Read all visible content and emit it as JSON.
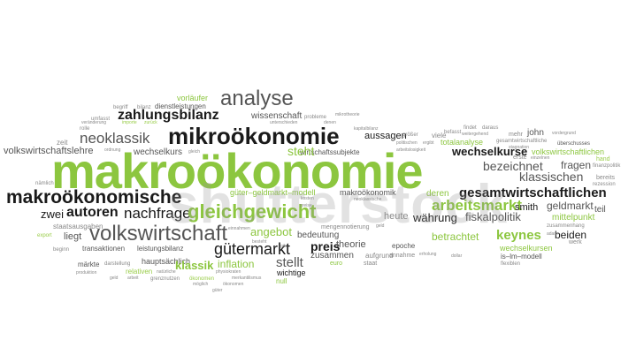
{
  "words": {
    "vorlaeufer": "vorläufer",
    "begriff": "begriff",
    "bilanz": "bilanz",
    "dienstleistungen": "dienstleistungen",
    "analyse": "analyse",
    "umfasst": "umfasst",
    "zahlungsbilanz": "zahlungsbilanz",
    "wissenschaft": "wissenschaft",
    "probleme": "probleme",
    "kapitalbilanz": "kapitalbilanz",
    "findet": "findet",
    "daraus": "daraus",
    "viele": "viele",
    "befasst": "befasst",
    "mehr": "mehr",
    "john": "john",
    "rolle": "rolle",
    "neoklassik": "neoklassik",
    "mikrooekonomie": "mikroökonomie",
    "aussagen": "aussagen",
    "totalanalyse": "totalanalyse",
    "gesamtwirtschaftliche": "gesamtwirtschaftliche",
    "ueberschusses": "überschusses",
    "zeit": "zeit",
    "wechselkurs": "wechselkurs",
    "wirtschaftssubjekte": "wirtschaftssubjekte",
    "wechselkurse": "wechselkurse",
    "volkswirtschaftlichen": "volkswirtschaftlichen",
    "volkswirtschaftslehre": "volkswirtschaftslehre",
    "steht": "steht",
    "erste": "erste",
    "hand": "hand",
    "makrooekonomie": "makroökonomie",
    "bezeichnet": "bezeichnet",
    "fragen": "fragen",
    "klassischen": "klassischen",
    "bereits": "bereits",
    "makrooekonomische": "makroökonomische",
    "gueter_geldmarkt_modell": "güter–geldmarkt–modell",
    "makrooekonomik": "makroökonomik",
    "deren": "deren",
    "gesamtwirtschaftlichen": "gesamtwirtschaftlichen",
    "arbeitsmarkt": "arbeitsmarkt",
    "smith": "smith",
    "geldmarkt": "geldmarkt",
    "zwei": "zwei",
    "autoren": "autoren",
    "nachfrage": "nachfrage",
    "gleichgewicht": "gleichgewicht",
    "heute": "heute",
    "waehrung": "währung",
    "fiskalpolitik": "fiskalpolitik",
    "teil": "teil",
    "mittelpunkt": "mittelpunkt",
    "staatsausgaben": "staatsausgaben",
    "liegt": "liegt",
    "volkswirtschaft": "volkswirtschaft",
    "angebot": "angebot",
    "bedeutung": "bedeutung",
    "betrachtet": "betrachtet",
    "keynes": "keynes",
    "beiden": "beiden",
    "export": "export",
    "gueter": "gütermarkt",
    "preis": "preis",
    "theorie": "theorie",
    "zusammen": "zusammen",
    "aufgrund": "aufgrund",
    "epoche": "epoche",
    "wechselkursen": "wechselkursen",
    "islmmodell": "is–lm–modell",
    "werk": "werk",
    "transaktionen": "transaktionen",
    "leistungsbilanz": "leistungsbilanz",
    "stellt": "stellt",
    "inflation": "inflation",
    "annahme": "annahme",
    "euro": "euro",
    "staat": "staat",
    "flexiblen": "flexiblen",
    "maerkte": "märkte",
    "hauptsaechlich": "hauptsächlich",
    "klassik": "klassik",
    "wichtige": "wichtige",
    "produktion": "produktion",
    "relativen": "relativen",
    "null": "null",
    "grenznutzen": "grenznutzen",
    "oekonomen": "ökonomen",
    "gueter_small": "güter",
    "mengennotierung": "mengennotierung",
    "neoklassische": "neoklassische",
    "stagnation": "stagnation",
    "zusammenhang": "zusammenhang",
    "finanzpolitik": "finanzpolitik",
    "rezession": "rezession",
    "einzelnen": "einzelnen",
    "naemlich": "nämlich",
    "gleich": "gleich",
    "kosten": "kosten",
    "preise": "preise",
    "ordnung": "ordnung",
    "darstellung": "darstellung",
    "natuerliche": "natürliche",
    "physiokraten": "physiokraten",
    "moeglich": "möglich",
    "merkantilismus": "merkantilismus",
    "geld": "geld",
    "arbeit": "arbeit",
    "beginn": "beginn",
    "gibt": "gibt",
    "besteht": "besteht",
    "dollar": "dollar",
    "erholung": "erholung",
    "politischen": "politischen",
    "maerkten": "märkten",
    "ergibt": "ergibt",
    "vordergrund": "vordergrund",
    "adam": "adam",
    "groesser": "größer",
    "weitergehend": "weitergehend",
    "arbeitslosigkeit": "arbeitslosigkeit",
    "unterschieden": "unterschieden",
    "denen": "denen",
    "mikrotheorie": "mikrotheorie",
    "veraenderung": "veränderung",
    "importe": "importe",
    "zurueck": "zurück",
    "einnahmen": "einnahmen",
    "watermark": "shutterstock"
  },
  "colors": {
    "dark": "#1a1a1a",
    "mid": "#555555",
    "light": "#8a8a8a",
    "green": "#8cc63f",
    "green_alt": "#9acd4a",
    "background": "#ffffff"
  }
}
